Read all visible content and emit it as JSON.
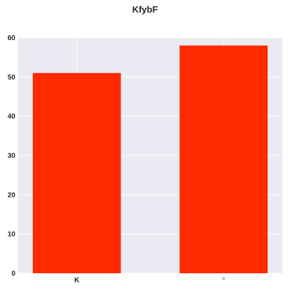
{
  "chart_data": {
    "type": "bar",
    "title": "KfybF",
    "xlabel": "",
    "ylabel": "",
    "categories": [
      "K",
      "u"
    ],
    "values": [
      51,
      58
    ],
    "ylim": [
      0,
      60
    ],
    "yticks": [
      0,
      10,
      20,
      30,
      40,
      50,
      60
    ],
    "bar_color": "#ff2a00",
    "plot_background": "#eaeaf2",
    "grid": true,
    "grid_color": "#ffffff"
  }
}
